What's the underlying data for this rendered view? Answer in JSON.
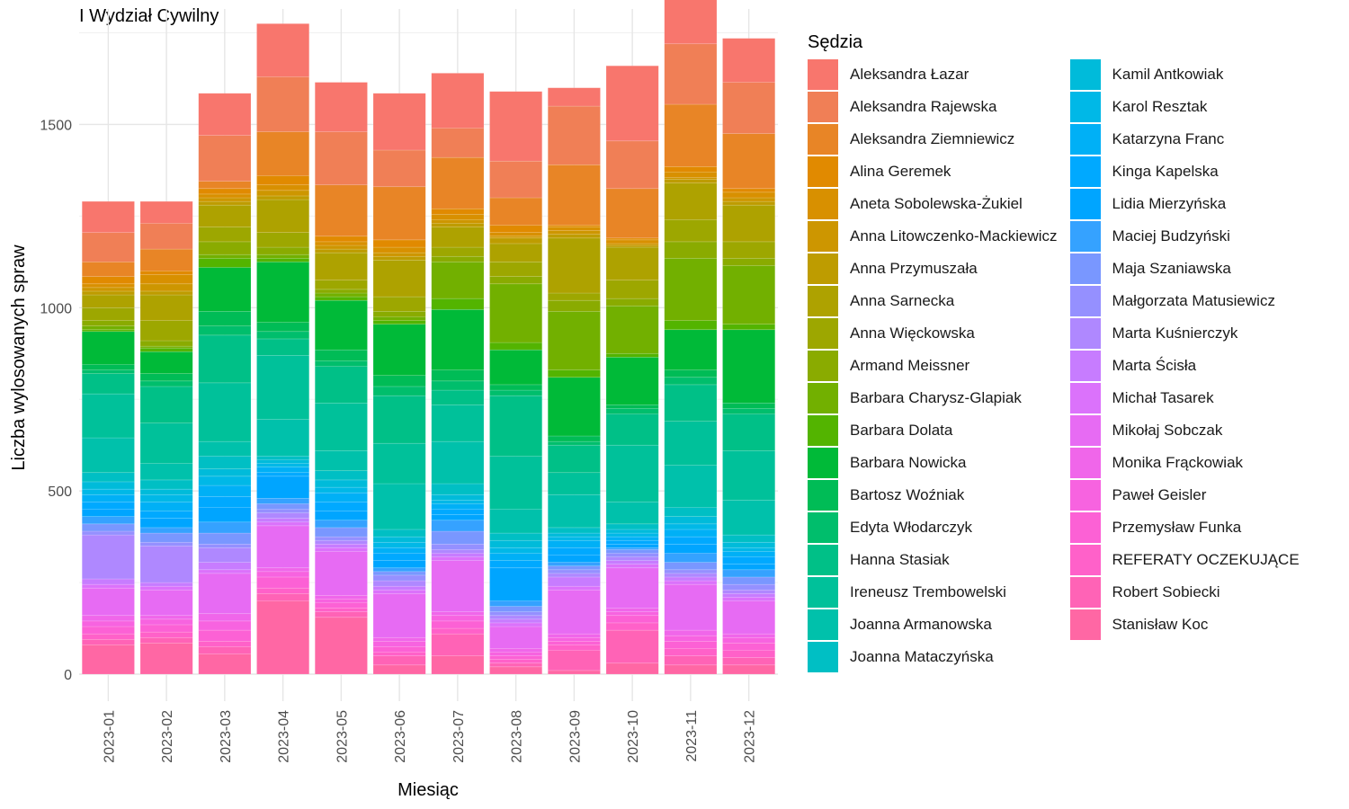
{
  "chart_data": {
    "type": "bar",
    "stacked": true,
    "title": "I Wydział Cywilny",
    "xlabel": "Miesiąc",
    "ylabel": "Liczba wylosowanych spraw",
    "ylim": [
      0,
      1800
    ],
    "yticks": [
      0,
      500,
      1000,
      1500
    ],
    "grid": true,
    "legend_title": "Sędzia",
    "legend_position": "right",
    "categories": [
      "2023-01",
      "2023-02",
      "2023-03",
      "2023-04",
      "2023-05",
      "2023-06",
      "2023-07",
      "2023-08",
      "2023-09",
      "2023-10",
      "2023-11",
      "2023-12"
    ],
    "series": [
      {
        "name": "Aleksandra Łazar",
        "color": "#F8766D",
        "values": [
          85,
          60,
          115,
          145,
          135,
          155,
          150,
          190,
          50,
          205,
          140,
          120
        ]
      },
      {
        "name": "Aleksandra Rajewska",
        "color": "#F07F56",
        "values": [
          80,
          70,
          125,
          150,
          145,
          100,
          80,
          100,
          160,
          130,
          165,
          140
        ]
      },
      {
        "name": "Aleksandra Ziemniewicz",
        "color": "#E88526",
        "values": [
          40,
          60,
          20,
          120,
          140,
          145,
          140,
          75,
          165,
          135,
          170,
          150
        ]
      },
      {
        "name": "Alina Geremek",
        "color": "#E18A00",
        "values": [
          20,
          10,
          15,
          25,
          15,
          20,
          15,
          20,
          5,
          5,
          15,
          10
        ]
      },
      {
        "name": "Aneta Sobolewska-Żukiel",
        "color": "#D89000",
        "values": [
          10,
          25,
          10,
          15,
          10,
          15,
          15,
          10,
          10,
          10,
          15,
          15
        ]
      },
      {
        "name": "Anna Litowczenko-Mackiewicz",
        "color": "#CD9600",
        "values": [
          10,
          20,
          10,
          15,
          10,
          10,
          10,
          5,
          10,
          5,
          5,
          10
        ]
      },
      {
        "name": "Anna Przymuszała",
        "color": "#BE9C00",
        "values": [
          10,
          10,
          10,
          10,
          10,
          10,
          10,
          15,
          10,
          5,
          10,
          10
        ]
      },
      {
        "name": "Anna Sarnecka",
        "color": "#AEA200",
        "values": [
          35,
          70,
          60,
          90,
          75,
          100,
          55,
          50,
          150,
          90,
          100,
          100
        ]
      },
      {
        "name": "Anna Więckowska",
        "color": "#9DA700",
        "values": [
          35,
          55,
          40,
          40,
          25,
          40,
          25,
          40,
          20,
          50,
          60,
          45
        ]
      },
      {
        "name": "Armand Meissner",
        "color": "#8AAB00",
        "values": [
          15,
          15,
          35,
          20,
          10,
          15,
          15,
          20,
          30,
          20,
          45,
          20
        ]
      },
      {
        "name": "Barbara Charysz-Glapiak",
        "color": "#72B000",
        "values": [
          10,
          5,
          10,
          10,
          10,
          10,
          100,
          160,
          160,
          130,
          170,
          160
        ]
      },
      {
        "name": "Barbara Dolata",
        "color": "#53B400",
        "values": [
          5,
          10,
          25,
          10,
          10,
          10,
          30,
          20,
          20,
          10,
          25,
          15
        ]
      },
      {
        "name": "Barbara Nowicka",
        "color": "#00BA38",
        "values": [
          90,
          60,
          120,
          165,
          135,
          140,
          165,
          95,
          160,
          130,
          110,
          200
        ]
      },
      {
        "name": "Bartosz Woźniak",
        "color": "#00BC56",
        "values": [
          15,
          20,
          40,
          25,
          30,
          30,
          30,
          15,
          15,
          10,
          20,
          15
        ]
      },
      {
        "name": "Edyta Włodarczyk",
        "color": "#00BE6C",
        "values": [
          10,
          15,
          25,
          20,
          15,
          25,
          25,
          15,
          10,
          15,
          20,
          15
        ]
      },
      {
        "name": "Hanna Stasiak",
        "color": "#00C087",
        "values": [
          55,
          100,
          130,
          45,
          100,
          130,
          40,
          165,
          75,
          85,
          100,
          100
        ]
      },
      {
        "name": "Ireneusz Trembowelski",
        "color": "#00C19A",
        "values": [
          120,
          110,
          160,
          175,
          130,
          110,
          100,
          145,
          60,
          155,
          120,
          135
        ]
      },
      {
        "name": "Joanna Armanowska",
        "color": "#00C1AB",
        "values": [
          95,
          45,
          40,
          100,
          55,
          125,
          115,
          65,
          90,
          60,
          115,
          95
        ]
      },
      {
        "name": "Joanna Mataczyńska",
        "color": "#00BFC4",
        "values": [
          25,
          25,
          35,
          10,
          25,
          20,
          30,
          20,
          15,
          15,
          25,
          20
        ]
      },
      {
        "name": "Kamil Antkowiak",
        "color": "#00BBDA",
        "values": [
          20,
          15,
          20,
          10,
          20,
          15,
          15,
          20,
          10,
          10,
          20,
          15
        ]
      },
      {
        "name": "Karol Resztak",
        "color": "#00B8E7",
        "values": [
          15,
          20,
          25,
          10,
          15,
          15,
          10,
          15,
          10,
          10,
          15,
          10
        ]
      },
      {
        "name": "Katarzyna Franc",
        "color": "#00B0F6",
        "values": [
          20,
          25,
          30,
          15,
          25,
          15,
          15,
          20,
          20,
          10,
          20,
          15
        ]
      },
      {
        "name": "Kinga Kapelska",
        "color": "#00A9FF",
        "values": [
          20,
          20,
          30,
          10,
          25,
          20,
          15,
          20,
          20,
          10,
          20,
          20
        ]
      },
      {
        "name": "Lidia Mierzyńska",
        "color": "#00A5FF",
        "values": [
          20,
          25,
          40,
          60,
          25,
          20,
          15,
          90,
          20,
          10,
          25,
          15
        ]
      },
      {
        "name": "Maciej Budzyński",
        "color": "#35A2FF",
        "values": [
          20,
          15,
          30,
          15,
          20,
          10,
          30,
          15,
          10,
          5,
          25,
          20
        ]
      },
      {
        "name": "Maja Szaniawska",
        "color": "#7997FF",
        "values": [
          20,
          25,
          30,
          15,
          25,
          10,
          35,
          15,
          10,
          10,
          20,
          20
        ]
      },
      {
        "name": "Małgorzata Matusiewicz",
        "color": "#9590FF",
        "values": [
          10,
          10,
          10,
          10,
          10,
          15,
          15,
          10,
          10,
          10,
          10,
          15
        ]
      },
      {
        "name": "Marta Kuśnierczyk",
        "color": "#AF88FF",
        "values": [
          120,
          100,
          40,
          15,
          10,
          15,
          10,
          10,
          10,
          10,
          10,
          10
        ]
      },
      {
        "name": "Marta Ścisła",
        "color": "#C77CFF",
        "values": [
          15,
          10,
          20,
          10,
          10,
          10,
          10,
          10,
          25,
          10,
          10,
          10
        ]
      },
      {
        "name": "Michał Tasarek",
        "color": "#DB72FB",
        "values": [
          10,
          10,
          10,
          10,
          10,
          10,
          10,
          10,
          10,
          10,
          10,
          10
        ]
      },
      {
        "name": "Mikołaj Sobczak",
        "color": "#E76BF3",
        "values": [
          75,
          70,
          110,
          115,
          120,
          120,
          140,
          60,
          120,
          110,
          125,
          90
        ]
      },
      {
        "name": "Monika Frąckowiak",
        "color": "#F066EA",
        "values": [
          15,
          10,
          20,
          10,
          10,
          10,
          10,
          10,
          10,
          10,
          15,
          10
        ]
      },
      {
        "name": "Paweł Geisler",
        "color": "#F763E0",
        "values": [
          15,
          15,
          25,
          15,
          10,
          15,
          15,
          10,
          10,
          10,
          15,
          15
        ]
      },
      {
        "name": "Przemysław Funka",
        "color": "#FC61D5",
        "values": [
          20,
          20,
          30,
          30,
          15,
          15,
          20,
          10,
          10,
          20,
          20,
          20
        ]
      },
      {
        "name": "REFERATY OCZEKUJĄCE",
        "color": "#FF61C9",
        "values": [
          15,
          15,
          15,
          15,
          10,
          10,
          15,
          10,
          15,
          20,
          20,
          20
        ]
      },
      {
        "name": "Robert Sobiecki",
        "color": "#FF63B6",
        "values": [
          15,
          15,
          20,
          20,
          15,
          25,
          60,
          10,
          55,
          90,
          25,
          20
        ]
      },
      {
        "name": "Stanisław Koc",
        "color": "#FF67A4",
        "values": [
          80,
          85,
          55,
          200,
          155,
          25,
          50,
          20,
          10,
          30,
          25,
          25
        ]
      }
    ]
  }
}
